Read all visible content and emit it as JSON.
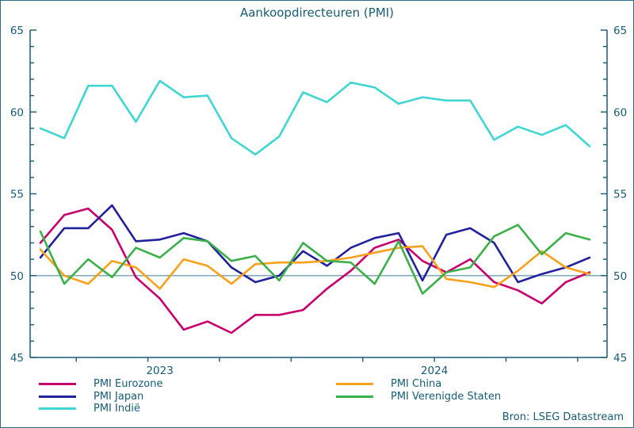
{
  "title": "Aankoopdirecteuren (PMI)",
  "source": "Bron: LSEG Datastream",
  "colors": {
    "axis": "#175c74",
    "text": "#175c74",
    "reference_line": "#7fa8b8",
    "background": "#ffffff"
  },
  "chart_data": {
    "type": "line",
    "x": [
      "2023-02",
      "2023-03",
      "2023-04",
      "2023-05",
      "2023-06",
      "2023-07",
      "2023-08",
      "2023-09",
      "2023-10",
      "2023-11",
      "2023-12",
      "2024-01",
      "2024-02",
      "2024-03",
      "2024-04",
      "2024-05",
      "2024-06",
      "2024-07",
      "2024-08",
      "2024-09",
      "2024-10",
      "2024-11",
      "2024-12",
      "2025-01"
    ],
    "x_axis_year_labels": [
      "2023",
      "2024"
    ],
    "y_axis": {
      "min": 45,
      "max": 65,
      "tick_step": 1,
      "label_step": 5,
      "labels_both_sides": true
    },
    "reference_line": 50,
    "grid": false,
    "legend_position": "bottom",
    "legend_columns": [
      3,
      2
    ],
    "series": [
      {
        "name": "PMI Eurozone",
        "color": "#c8006e",
        "values": [
          52.0,
          53.7,
          54.1,
          52.8,
          49.9,
          48.6,
          46.7,
          47.2,
          46.5,
          47.6,
          47.6,
          47.9,
          49.2,
          50.3,
          51.7,
          52.2,
          50.9,
          50.2,
          51.0,
          49.6,
          49.1,
          48.3,
          49.6,
          50.2
        ]
      },
      {
        "name": "PMI Japan",
        "color": "#22229c",
        "values": [
          51.1,
          52.9,
          52.9,
          54.3,
          52.1,
          52.2,
          52.6,
          52.1,
          50.5,
          49.6,
          50.0,
          51.5,
          50.6,
          51.7,
          52.3,
          52.6,
          49.7,
          52.5,
          52.9,
          52.0,
          49.6,
          50.1,
          50.5,
          51.1
        ]
      },
      {
        "name": "PMI Indië",
        "color": "#40d6d2",
        "values": [
          59.0,
          58.4,
          61.6,
          61.6,
          59.4,
          61.9,
          60.9,
          61.0,
          58.4,
          57.4,
          58.5,
          61.2,
          60.6,
          61.8,
          61.5,
          60.5,
          60.9,
          60.7,
          60.7,
          58.3,
          59.1,
          58.6,
          59.2,
          57.9
        ]
      },
      {
        "name": "PMI China",
        "color": "#f9a11b",
        "values": [
          51.6,
          50.0,
          49.5,
          50.9,
          50.5,
          49.2,
          51.0,
          50.6,
          49.5,
          50.7,
          50.8,
          50.8,
          50.9,
          51.1,
          51.4,
          51.7,
          51.8,
          49.8,
          49.6,
          49.3,
          50.3,
          51.5,
          50.5,
          50.1
        ]
      },
      {
        "name": "PMI Verenigde Staten",
        "color": "#3cb04a",
        "values": [
          52.7,
          49.5,
          51.0,
          49.9,
          51.7,
          51.1,
          52.3,
          52.1,
          50.9,
          51.2,
          49.7,
          52.0,
          50.9,
          50.8,
          49.5,
          52.1,
          48.9,
          50.2,
          50.5,
          52.4,
          53.1,
          51.3,
          52.6,
          52.2
        ]
      }
    ]
  }
}
